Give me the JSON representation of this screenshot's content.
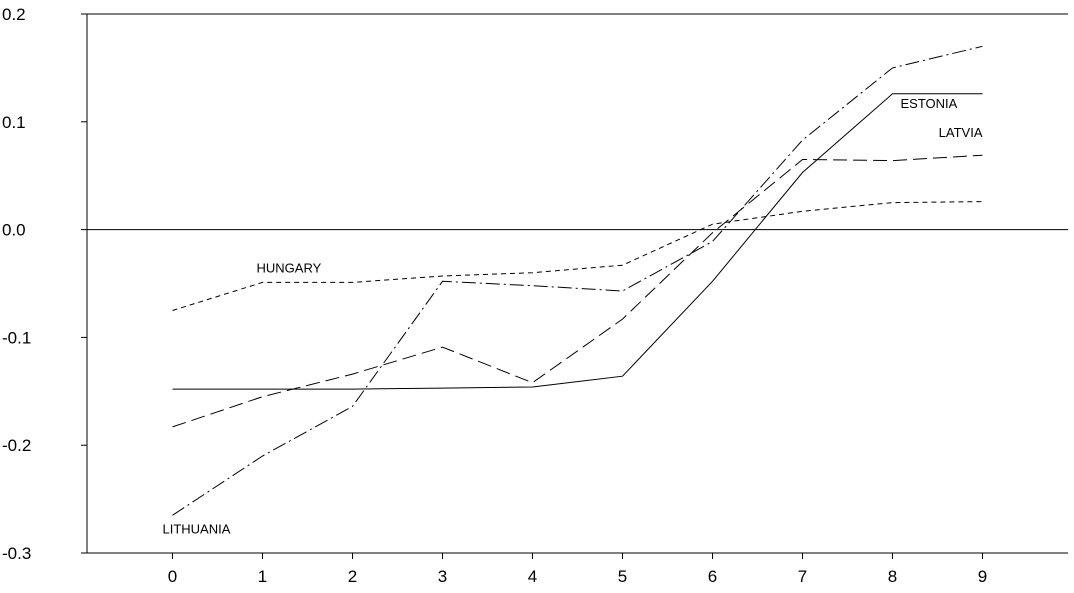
{
  "chart_data": {
    "type": "line",
    "x": [
      0,
      1,
      2,
      3,
      4,
      5,
      6,
      7,
      8,
      9
    ],
    "xlim": [
      -0.95,
      9.95
    ],
    "ylim": [
      -0.3,
      0.2
    ],
    "x_ticks": [
      "0",
      "1",
      "2",
      "3",
      "4",
      "5",
      "6",
      "7",
      "8",
      "9"
    ],
    "y_ticks": [
      {
        "value": 0.2,
        "label": "0.2"
      },
      {
        "value": 0.1,
        "label": "0.1"
      },
      {
        "value": 0.0,
        "label": "0.0"
      },
      {
        "value": -0.1,
        "label": "-0.1"
      },
      {
        "value": -0.2,
        "label": "-0.2"
      },
      {
        "value": -0.3,
        "label": "-0.3"
      }
    ],
    "zero_line": true,
    "grid": false,
    "legend": "none",
    "series": [
      {
        "name": "ESTONIA",
        "line_style": "solid",
        "values": [
          -0.148,
          -0.148,
          -0.148,
          -0.147,
          -0.146,
          -0.136,
          -0.048,
          0.053,
          0.126,
          0.126
        ]
      },
      {
        "name": "LATVIA",
        "line_style": "long-dash",
        "values": [
          -0.183,
          -0.155,
          -0.134,
          -0.109,
          -0.142,
          -0.083,
          -0.003,
          0.065,
          0.064,
          0.069
        ]
      },
      {
        "name": "HUNGARY",
        "line_style": "short-dash",
        "values": [
          -0.075,
          -0.049,
          -0.049,
          -0.043,
          -0.04,
          -0.033,
          0.005,
          0.017,
          0.025,
          0.026
        ]
      },
      {
        "name": "LITHUANIA",
        "line_style": "dash-dot",
        "values": [
          -0.265,
          -0.21,
          -0.164,
          -0.048,
          -0.052,
          -0.057,
          -0.011,
          0.083,
          0.15,
          0.17
        ]
      }
    ]
  }
}
